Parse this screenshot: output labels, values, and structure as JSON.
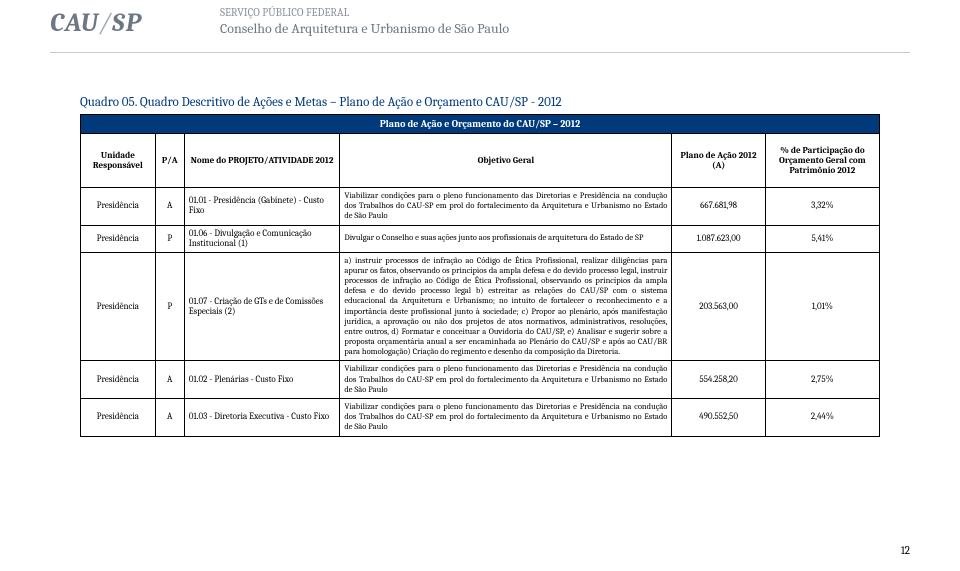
{
  "logo": {
    "mark": "CAU",
    "slash": "/",
    "sp": "SP",
    "line1": "SERVIÇO PÚBLICO FEDERAL",
    "line2": "Conselho de Arquitetura e Urbanismo de São Paulo"
  },
  "title": "Quadro 05. Quadro Descritivo de Ações e Metas – Plano de Ação e Orçamento CAU/SP - 2012",
  "bar": "Plano de Ação e Orçamento do CAU/SP – 2012",
  "head": {
    "c1": "Unidade Responsável",
    "c2": "P/A",
    "c3": "Nome do PROJETO/ATIVIDADE 2012",
    "c4": "Objetivo Geral",
    "c5": "Plano de Ação 2012 (A)",
    "c6": "% de Participação do Orçamento Geral com Patrimônio 2012"
  },
  "rows": [
    {
      "u": "Presidência",
      "pa": "A",
      "nm": "01.01 - Presidência (Gabinete) - Custo Fixo",
      "obj": "Viabilizar condições para o pleno funcionamento das Diretorias e Presidência na condução dos Trabalhos do CAU-SP em prol do fortalecimento da Arquitetura e Urbanismo no Estado de São Paulo",
      "plan": "667.681,98",
      "pc": "3,32%"
    },
    {
      "u": "Presidência",
      "pa": "P",
      "nm": "01.06 - Divulgação e Comunicação Institucional (1)",
      "obj": "Divulgar o Conselho e suas ações junto aos profissionais de arquitetura do Estado de SP",
      "plan": "1.087.623,00",
      "pc": "5,41%"
    },
    {
      "u": "Presidência",
      "pa": "P",
      "nm": "01.07 - Criação de GTs e de Comissões Especiais (2)",
      "obj": "a) instruir processos de infração ao Código de Ética Profissional, realizar diligências para apurar os fatos, observando os princípios da ampla defesa e do devido processo legal, instruir processos de infração ao Código de Ética Profissional, observando os princípios da ampla defesa e do devido processo legal b) estreitar as relações do CAU/SP com o sistema educacional da Arquitetura e Urbanismo; no intuito de fortalecer o reconhecimento e a importância deste profissional junto à sociedade; c) Propor ao plenário, após manifestação jurídica, a aprovação ou não dos projetos de atos normativos, administrativos, resoluções, entre outros, d) Formatar e conceituar a Ouvidoria do CAU/SP, e) Analisar e sugerir sobre a proposta orçamentária anual a ser encaminhada ao Plenário do CAU/SP e após ao CAU/BR para homologação) Criação do regimento e desenho da composição da Diretoria.",
      "plan": "203.563,00",
      "pc": "1,01%"
    },
    {
      "u": "Presidência",
      "pa": "A",
      "nm": "01.02 - Plenárias - Custo Fixo",
      "obj": "Viabilizar condições para o pleno funcionamento das Diretorias e Presidência na condução dos Trabalhos do CAU-SP em prol do fortalecimento da Arquitetura e Urbanismo no Estado de São Paulo",
      "plan": "554.258,20",
      "pc": "2,75%"
    },
    {
      "u": "Presidência",
      "pa": "A",
      "nm": "01.03 - Diretoria Executiva - Custo Fixo",
      "obj": " Viabilizar condições para o pleno funcionamento das Diretorias e Presidência na condução dos Trabalhos do CAU-SP em prol do fortalecimento da Arquitetura e Urbanismo no Estado de São Paulo",
      "plan": "490.552,50",
      "pc": "2,44%"
    }
  ],
  "pagenum": "12"
}
